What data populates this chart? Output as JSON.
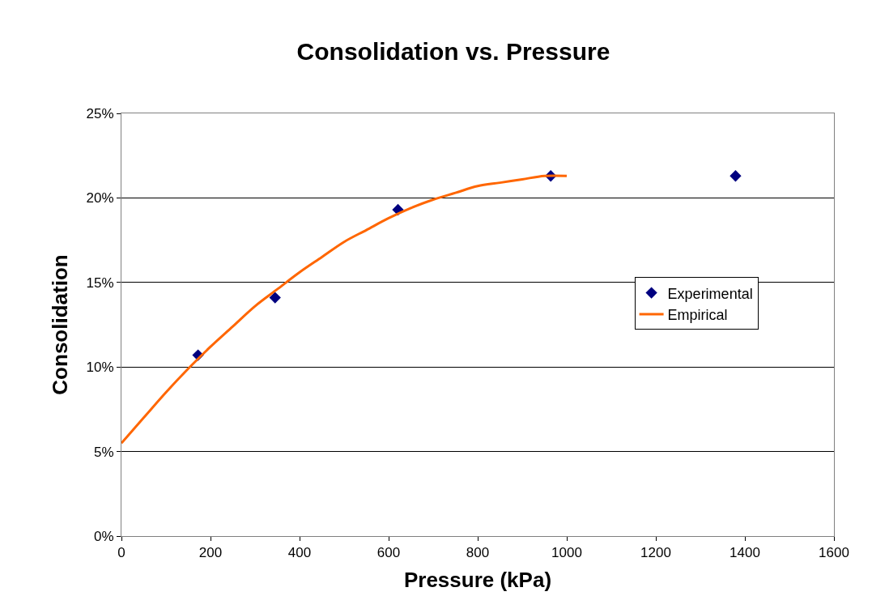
{
  "chart_data": {
    "type": "scatter",
    "title": "Consolidation vs. Pressure",
    "xlabel": "Pressure (kPa)",
    "ylabel": "Consolidation",
    "xlim": [
      0,
      1600
    ],
    "xticks": [
      0,
      200,
      400,
      600,
      800,
      1000,
      1200,
      1400,
      1600
    ],
    "ylim": [
      0,
      25
    ],
    "yticks": [
      {
        "value": 0,
        "label": "0%"
      },
      {
        "value": 5,
        "label": "5%"
      },
      {
        "value": 10,
        "label": "10%"
      },
      {
        "value": 15,
        "label": "15%"
      },
      {
        "value": 20,
        "label": "20%"
      },
      {
        "value": 25,
        "label": "25%"
      }
    ],
    "grid": "y",
    "legend": "right",
    "series": [
      {
        "name": "Experimental",
        "marker": "diamond",
        "color": "#000080",
        "x": [
          172,
          345,
          621,
          964,
          1379
        ],
        "values": [
          10.7,
          14.1,
          19.3,
          21.3,
          21.3
        ]
      },
      {
        "name": "Empirical",
        "type": "line",
        "marker": "none",
        "line_style": "solid",
        "color": "#ff6600",
        "x": [
          0,
          50,
          100,
          150,
          200,
          250,
          300,
          350,
          400,
          450,
          500,
          550,
          600,
          650,
          700,
          750,
          800,
          850,
          900,
          950,
          1000
        ],
        "values": [
          5.5,
          7.0,
          8.5,
          9.9,
          11.2,
          12.4,
          13.6,
          14.6,
          15.6,
          16.5,
          17.4,
          18.1,
          18.8,
          19.4,
          19.9,
          20.3,
          20.7,
          20.9,
          21.1,
          21.3,
          21.3
        ]
      }
    ]
  }
}
